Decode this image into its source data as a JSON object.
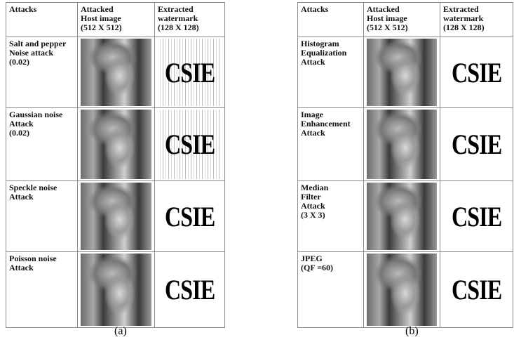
{
  "panels": [
    {
      "caption": "(a)",
      "header": [
        "Attacks",
        "Attacked\nHost image\n(512 X 512)",
        "Extracted\nwatermark\n(128 X 128)"
      ],
      "rows": [
        {
          "attack": "Salt and pepper\nNoise attack\n(0.02)",
          "watermark": "CSIE"
        },
        {
          "attack": "Gaussian noise\nAttack\n(0.02)",
          "watermark": "CSIE"
        },
        {
          "attack": "Speckle noise\nAttack",
          "watermark": "CSIE"
        },
        {
          "attack": "Poisson noise\nAttack",
          "watermark": "CSIE"
        }
      ]
    },
    {
      "caption": "(b)",
      "header": [
        "Attacks",
        "Attacked\nHost image\n(512 X 512)",
        "Extracted\nwatermark\n(128 X 128)"
      ],
      "rows": [
        {
          "attack": "Histogram\nEqualization\nAttack",
          "watermark": "CSIE"
        },
        {
          "attack": "Image\nEnhancement\nAttack",
          "watermark": "CSIE"
        },
        {
          "attack": "Median\nFilter\nAttack\n(3 X 3)",
          "watermark": "CSIE"
        },
        {
          "attack": "JPEG\n(QF =60)",
          "watermark": "CSIE"
        }
      ]
    }
  ]
}
